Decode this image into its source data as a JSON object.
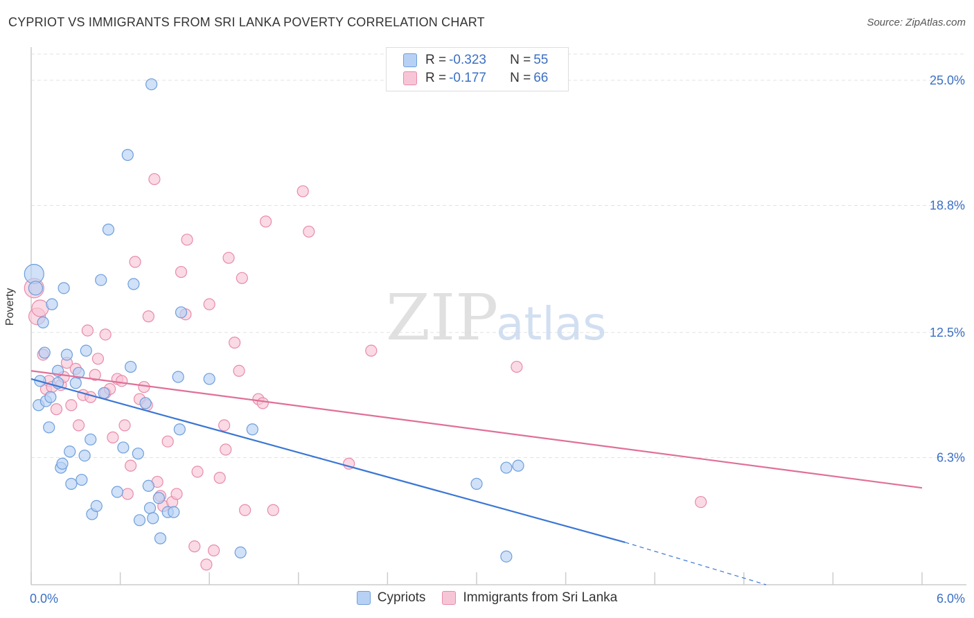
{
  "header": {
    "title": "CYPRIOT VS IMMIGRANTS FROM SRI LANKA POVERTY CORRELATION CHART",
    "source": "Source: ZipAtlas.com"
  },
  "watermark": {
    "zip": "ZIP",
    "atlas": "atlas"
  },
  "legend": {
    "rows": [
      {
        "r_label": "R = ",
        "r_value": "-0.323",
        "n_label": "N = ",
        "n_value": "55",
        "fill": "#b7d1f4",
        "stroke": "#6d9edb"
      },
      {
        "r_label": "R = ",
        "r_value": "-0.177",
        "n_label": "N = ",
        "n_value": "66",
        "fill": "#f7c6d6",
        "stroke": "#e88aaa"
      }
    ]
  },
  "chart_data": {
    "type": "scatter",
    "ylabel": "Poverty",
    "xlim": [
      0.0,
      6.0
    ],
    "ylim": [
      0.0,
      26.3
    ],
    "x_tick_labels": [
      "0.0%",
      "6.0%"
    ],
    "y_ticks": [
      {
        "value": 6.3,
        "label": "6.3%"
      },
      {
        "value": 12.5,
        "label": "12.5%"
      },
      {
        "value": 18.8,
        "label": "18.8%"
      },
      {
        "value": 25.0,
        "label": "25.0%"
      }
    ],
    "grid": "horizontal dashed",
    "colors": {
      "blue": "#3a76d4",
      "pink": "#e06f98",
      "axis_text": "#3a6fc4"
    },
    "series": [
      {
        "name": "Cypriots",
        "fill": "#b7d1f4",
        "stroke": "#6d9edb",
        "line_color": "#3a76d4",
        "trend": {
          "x0": 0.0,
          "y0": 10.2,
          "x1": 4.0,
          "y1": 2.1,
          "dash_to_x": 4.95,
          "dash_to_y": 0.0
        },
        "points": [
          [
            0.02,
            15.4,
            14
          ],
          [
            0.03,
            14.7,
            10
          ],
          [
            0.05,
            8.9,
            8
          ],
          [
            0.06,
            10.1,
            8
          ],
          [
            0.08,
            13.0,
            8
          ],
          [
            0.09,
            11.5,
            8
          ],
          [
            0.1,
            9.1,
            8
          ],
          [
            0.12,
            7.8,
            8
          ],
          [
            0.13,
            9.3,
            8
          ],
          [
            0.14,
            13.9,
            8
          ],
          [
            0.18,
            10.6,
            8
          ],
          [
            0.2,
            5.8,
            8
          ],
          [
            0.21,
            6.0,
            8
          ],
          [
            0.22,
            14.7,
            8
          ],
          [
            0.24,
            11.4,
            8
          ],
          [
            0.26,
            6.6,
            8
          ],
          [
            0.27,
            5.0,
            8
          ],
          [
            0.3,
            10.0,
            8
          ],
          [
            0.32,
            10.5,
            8
          ],
          [
            0.34,
            5.2,
            8
          ],
          [
            0.36,
            6.4,
            8
          ],
          [
            0.37,
            11.6,
            8
          ],
          [
            0.4,
            7.2,
            8
          ],
          [
            0.41,
            3.5,
            8
          ],
          [
            0.44,
            3.9,
            8
          ],
          [
            0.47,
            15.1,
            8
          ],
          [
            0.49,
            9.5,
            8
          ],
          [
            0.52,
            17.6,
            8
          ],
          [
            0.58,
            4.6,
            8
          ],
          [
            0.62,
            6.8,
            8
          ],
          [
            0.65,
            21.3,
            8
          ],
          [
            0.67,
            10.8,
            8
          ],
          [
            0.69,
            14.9,
            8
          ],
          [
            0.72,
            6.5,
            8
          ],
          [
            0.73,
            3.2,
            8
          ],
          [
            0.77,
            9.0,
            8
          ],
          [
            0.79,
            4.9,
            8
          ],
          [
            0.8,
            3.8,
            8
          ],
          [
            0.81,
            24.8,
            8
          ],
          [
            0.82,
            3.3,
            8
          ],
          [
            0.86,
            4.3,
            8
          ],
          [
            0.87,
            2.3,
            8
          ],
          [
            0.92,
            3.6,
            8
          ],
          [
            0.96,
            3.6,
            8
          ],
          [
            0.99,
            10.3,
            8
          ],
          [
            1.0,
            7.7,
            8
          ],
          [
            1.01,
            13.5,
            8
          ],
          [
            1.2,
            10.2,
            8
          ],
          [
            1.41,
            1.6,
            8
          ],
          [
            1.49,
            7.7,
            8
          ],
          [
            3.0,
            5.0,
            8
          ],
          [
            3.2,
            5.8,
            8
          ],
          [
            3.28,
            5.9,
            8
          ],
          [
            3.2,
            1.4,
            8
          ],
          [
            0.18,
            10.0,
            8
          ]
        ]
      },
      {
        "name": "Immigrants from Sri Lanka",
        "fill": "#f7c6d6",
        "stroke": "#e88aaa",
        "line_color": "#e06f98",
        "trend": {
          "x0": 0.0,
          "y0": 10.6,
          "x1": 6.0,
          "y1": 4.8
        },
        "points": [
          [
            0.02,
            14.7,
            14
          ],
          [
            0.04,
            13.3,
            12
          ],
          [
            0.06,
            13.7,
            12
          ],
          [
            0.08,
            11.4,
            8
          ],
          [
            0.1,
            9.7,
            8
          ],
          [
            0.12,
            10.1,
            8
          ],
          [
            0.14,
            9.8,
            8
          ],
          [
            0.17,
            8.7,
            8
          ],
          [
            0.2,
            9.9,
            8
          ],
          [
            0.22,
            10.3,
            8
          ],
          [
            0.24,
            11.0,
            8
          ],
          [
            0.27,
            8.9,
            8
          ],
          [
            0.3,
            10.7,
            8
          ],
          [
            0.32,
            7.9,
            8
          ],
          [
            0.35,
            9.4,
            8
          ],
          [
            0.38,
            12.6,
            8
          ],
          [
            0.4,
            9.3,
            8
          ],
          [
            0.43,
            10.4,
            8
          ],
          [
            0.45,
            11.2,
            8
          ],
          [
            0.5,
            9.5,
            8
          ],
          [
            0.5,
            12.4,
            8
          ],
          [
            0.53,
            9.7,
            8
          ],
          [
            0.55,
            7.3,
            8
          ],
          [
            0.58,
            10.2,
            8
          ],
          [
            0.61,
            10.1,
            8
          ],
          [
            0.63,
            7.9,
            8
          ],
          [
            0.65,
            4.5,
            8
          ],
          [
            0.67,
            5.9,
            8
          ],
          [
            0.7,
            16.0,
            8
          ],
          [
            0.73,
            9.2,
            8
          ],
          [
            0.76,
            9.8,
            8
          ],
          [
            0.78,
            8.9,
            8
          ],
          [
            0.79,
            13.3,
            8
          ],
          [
            0.83,
            20.1,
            8
          ],
          [
            0.85,
            5.1,
            8
          ],
          [
            0.87,
            4.4,
            8
          ],
          [
            0.89,
            3.9,
            8
          ],
          [
            0.92,
            7.1,
            8
          ],
          [
            0.95,
            4.1,
            8
          ],
          [
            0.98,
            4.5,
            8
          ],
          [
            1.01,
            15.5,
            8
          ],
          [
            1.04,
            13.4,
            8
          ],
          [
            1.05,
            17.1,
            8
          ],
          [
            1.1,
            1.9,
            8
          ],
          [
            1.12,
            5.6,
            8
          ],
          [
            1.18,
            1.0,
            8
          ],
          [
            1.2,
            13.9,
            8
          ],
          [
            1.23,
            1.7,
            8
          ],
          [
            1.27,
            5.3,
            8
          ],
          [
            1.3,
            7.9,
            8
          ],
          [
            1.31,
            6.7,
            8
          ],
          [
            1.33,
            16.2,
            8
          ],
          [
            1.37,
            12.0,
            8
          ],
          [
            1.4,
            10.6,
            8
          ],
          [
            1.42,
            15.2,
            8
          ],
          [
            1.44,
            3.7,
            8
          ],
          [
            1.53,
            9.2,
            8
          ],
          [
            1.56,
            9.0,
            8
          ],
          [
            1.58,
            18.0,
            8
          ],
          [
            1.63,
            3.7,
            8
          ],
          [
            1.83,
            19.5,
            8
          ],
          [
            1.87,
            17.5,
            8
          ],
          [
            2.14,
            6.0,
            8
          ],
          [
            2.29,
            11.6,
            8
          ],
          [
            3.27,
            10.8,
            8
          ],
          [
            4.51,
            4.1,
            8
          ]
        ]
      }
    ]
  },
  "bottom_legend": {
    "items": [
      {
        "label": "Cypriots",
        "fill": "#b7d1f4",
        "stroke": "#6d9edb"
      },
      {
        "label": "Immigrants from Sri Lanka",
        "fill": "#f7c6d6",
        "stroke": "#e88aaa"
      }
    ]
  }
}
